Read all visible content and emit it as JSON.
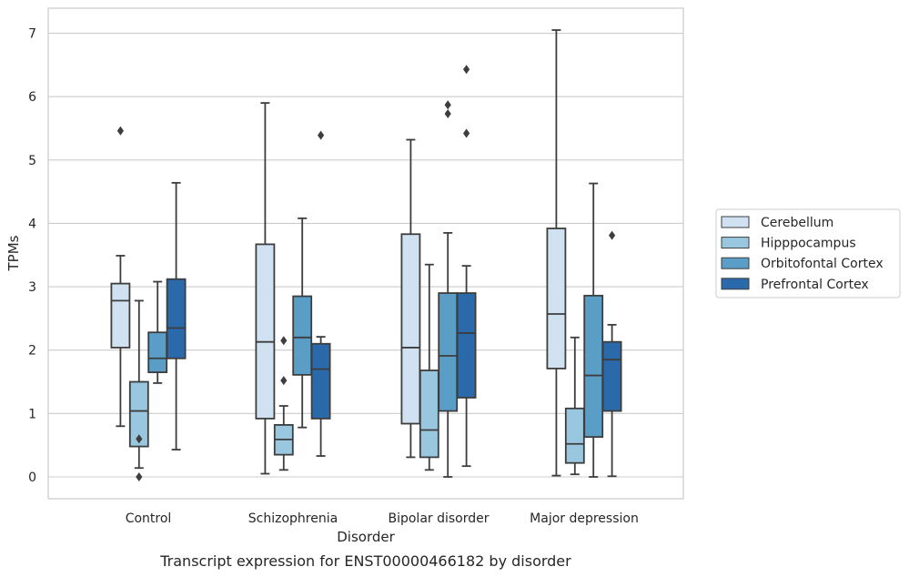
{
  "caption": "Transcript expression for ENST00000466182 by disorder",
  "chart_data": {
    "type": "boxplot",
    "xlabel": "Disorder",
    "ylabel": "TPMs",
    "categories": [
      "Control",
      "Schizophrenia",
      "Bipolar disorder",
      "Major depression"
    ],
    "y_ticks": [
      "0",
      "1",
      "2",
      "3",
      "4",
      "5",
      "6",
      "7"
    ],
    "ylim": [
      -0.35,
      7.4
    ],
    "grid": "horizontal",
    "legend_position": "right",
    "series": [
      {
        "name": "Cerebellum",
        "color": "#d0e2f2",
        "boxes": [
          {
            "whislo": 0.8,
            "q1": 2.04,
            "median": 2.78,
            "q3": 3.05,
            "whishi": 3.49,
            "fliers": [
              5.46
            ]
          },
          {
            "whislo": 0.05,
            "q1": 0.92,
            "median": 2.13,
            "q3": 3.67,
            "whishi": 5.9,
            "fliers": []
          },
          {
            "whislo": 0.31,
            "q1": 0.84,
            "median": 2.04,
            "q3": 3.83,
            "whishi": 5.32,
            "fliers": []
          },
          {
            "whislo": 0.02,
            "q1": 1.71,
            "median": 2.57,
            "q3": 3.92,
            "whishi": 7.05,
            "fliers": []
          }
        ]
      },
      {
        "name": "Hipppocampus",
        "color": "#9ac7e0",
        "boxes": [
          {
            "whislo": 0.14,
            "q1": 0.48,
            "median": 1.04,
            "q3": 1.5,
            "whishi": 2.78,
            "fliers": [
              0.6,
              0.0
            ]
          },
          {
            "whislo": 0.11,
            "q1": 0.35,
            "median": 0.59,
            "q3": 0.82,
            "whishi": 1.12,
            "fliers": [
              2.15,
              1.52
            ]
          },
          {
            "whislo": 0.11,
            "q1": 0.31,
            "median": 0.74,
            "q3": 1.68,
            "whishi": 3.35,
            "fliers": []
          },
          {
            "whislo": 0.04,
            "q1": 0.22,
            "median": 0.52,
            "q3": 1.08,
            "whishi": 2.2,
            "fliers": []
          }
        ]
      },
      {
        "name": "Orbitofontal Cortex",
        "color": "#5a9ec8",
        "boxes": [
          {
            "whislo": 1.48,
            "q1": 1.65,
            "median": 1.87,
            "q3": 2.28,
            "whishi": 3.08,
            "fliers": []
          },
          {
            "whislo": 0.78,
            "q1": 1.61,
            "median": 2.2,
            "q3": 2.85,
            "whishi": 4.08,
            "fliers": []
          },
          {
            "whislo": 0.0,
            "q1": 1.04,
            "median": 1.91,
            "q3": 2.9,
            "whishi": 3.85,
            "fliers": [
              5.87,
              5.73
            ]
          },
          {
            "whislo": 0.0,
            "q1": 0.63,
            "median": 1.6,
            "q3": 2.86,
            "whishi": 4.63,
            "fliers": []
          }
        ]
      },
      {
        "name": "Prefrontal Cortex",
        "color": "#2b6aaa",
        "boxes": [
          {
            "whislo": 0.43,
            "q1": 1.87,
            "median": 2.35,
            "q3": 3.12,
            "whishi": 4.64,
            "fliers": []
          },
          {
            "whislo": 0.33,
            "q1": 0.92,
            "median": 1.7,
            "q3": 2.1,
            "whishi": 2.21,
            "fliers": [
              5.39
            ]
          },
          {
            "whislo": 0.17,
            "q1": 1.25,
            "median": 2.27,
            "q3": 2.9,
            "whishi": 3.33,
            "fliers": [
              6.43,
              5.42
            ]
          },
          {
            "whislo": 0.01,
            "q1": 1.04,
            "median": 1.85,
            "q3": 2.13,
            "whishi": 2.4,
            "fliers": [
              3.81
            ]
          }
        ]
      }
    ]
  }
}
